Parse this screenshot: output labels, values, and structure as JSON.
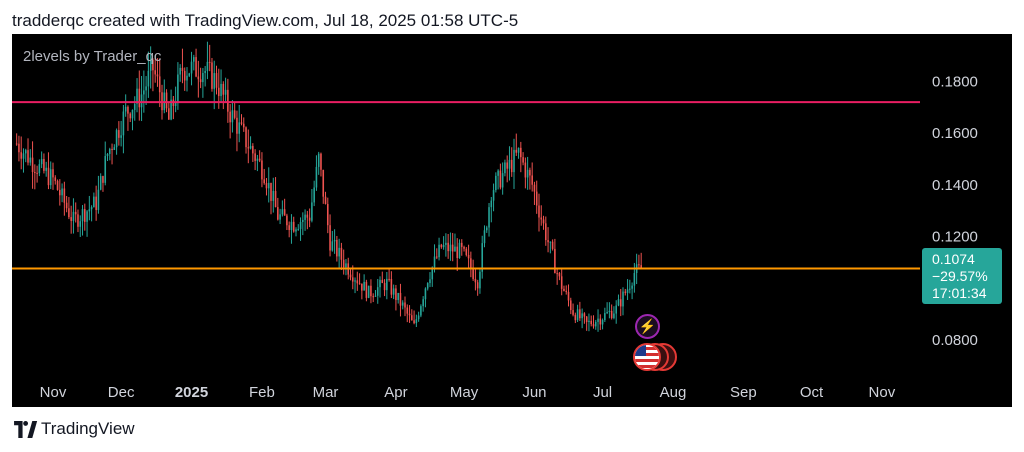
{
  "header": {
    "text": "tradderqc created with TradingView.com, Jul 18, 2025 01:58 UTC-5"
  },
  "chart": {
    "study_title": "2levels by Trader_qc",
    "price_label": {
      "price": "0.1074",
      "change": "−29.57%",
      "countdown": "17:01:34"
    },
    "colors": {
      "background": "#000000",
      "up": "#26a69a",
      "down": "#ef5350",
      "resistance": "#e91e63",
      "support": "#ff9800",
      "axis_text": "#d1d4dc"
    },
    "icons": {
      "event_upcoming": "lightning-bolt-icon",
      "event_economic": "us-flag-icon"
    }
  },
  "chart_data": {
    "type": "candlestick",
    "title": "",
    "y_ticks": [
      "0.0800",
      "0.1200",
      "0.1400",
      "0.1600",
      "0.1800"
    ],
    "x_ticks": [
      "Nov",
      "Dec",
      "2025",
      "Feb",
      "Mar",
      "Apr",
      "May",
      "Jun",
      "Jul",
      "Aug",
      "Sep",
      "Oct",
      "Nov"
    ],
    "ylim": [
      0.066,
      0.198
    ],
    "horizontal_levels": [
      {
        "price": 0.172,
        "color": "#e91e63"
      },
      {
        "price": 0.1076,
        "color": "#ff9800"
      }
    ],
    "last_price": 0.1074,
    "close_path": [
      [
        "2024-10-16",
        0.156
      ],
      [
        "2024-10-24",
        0.148
      ],
      [
        "2024-11-01",
        0.142
      ],
      [
        "2024-11-10",
        0.126
      ],
      [
        "2024-11-20",
        0.133
      ],
      [
        "2024-11-25",
        0.152
      ],
      [
        "2024-12-03",
        0.168
      ],
      [
        "2024-12-10",
        0.175
      ],
      [
        "2024-12-15",
        0.185
      ],
      [
        "2024-12-22",
        0.165
      ],
      [
        "2024-12-28",
        0.185
      ],
      [
        "2025-01-06",
        0.185
      ],
      [
        "2025-01-12",
        0.18
      ],
      [
        "2025-01-18",
        0.168
      ],
      [
        "2025-01-25",
        0.157
      ],
      [
        "2025-02-02",
        0.145
      ],
      [
        "2025-02-08",
        0.128
      ],
      [
        "2025-02-15",
        0.125
      ],
      [
        "2025-02-22",
        0.128
      ],
      [
        "2025-02-26",
        0.15
      ],
      [
        "2025-03-03",
        0.118
      ],
      [
        "2025-03-10",
        0.109
      ],
      [
        "2025-03-20",
        0.098
      ],
      [
        "2025-03-28",
        0.102
      ],
      [
        "2025-04-04",
        0.093
      ],
      [
        "2025-04-09",
        0.085
      ],
      [
        "2025-04-15",
        0.104
      ],
      [
        "2025-04-21",
        0.116
      ],
      [
        "2025-04-30",
        0.114
      ],
      [
        "2025-05-07",
        0.103
      ],
      [
        "2025-05-13",
        0.138
      ],
      [
        "2025-05-19",
        0.145
      ],
      [
        "2025-05-25",
        0.152
      ],
      [
        "2025-05-31",
        0.14
      ],
      [
        "2025-06-06",
        0.121
      ],
      [
        "2025-06-12",
        0.103
      ],
      [
        "2025-06-18",
        0.091
      ],
      [
        "2025-06-24",
        0.086
      ],
      [
        "2025-07-01",
        0.089
      ],
      [
        "2025-07-07",
        0.092
      ],
      [
        "2025-07-12",
        0.1
      ],
      [
        "2025-07-15",
        0.106
      ],
      [
        "2025-07-18",
        0.1074
      ]
    ]
  },
  "footer": {
    "brand": "TradingView"
  }
}
